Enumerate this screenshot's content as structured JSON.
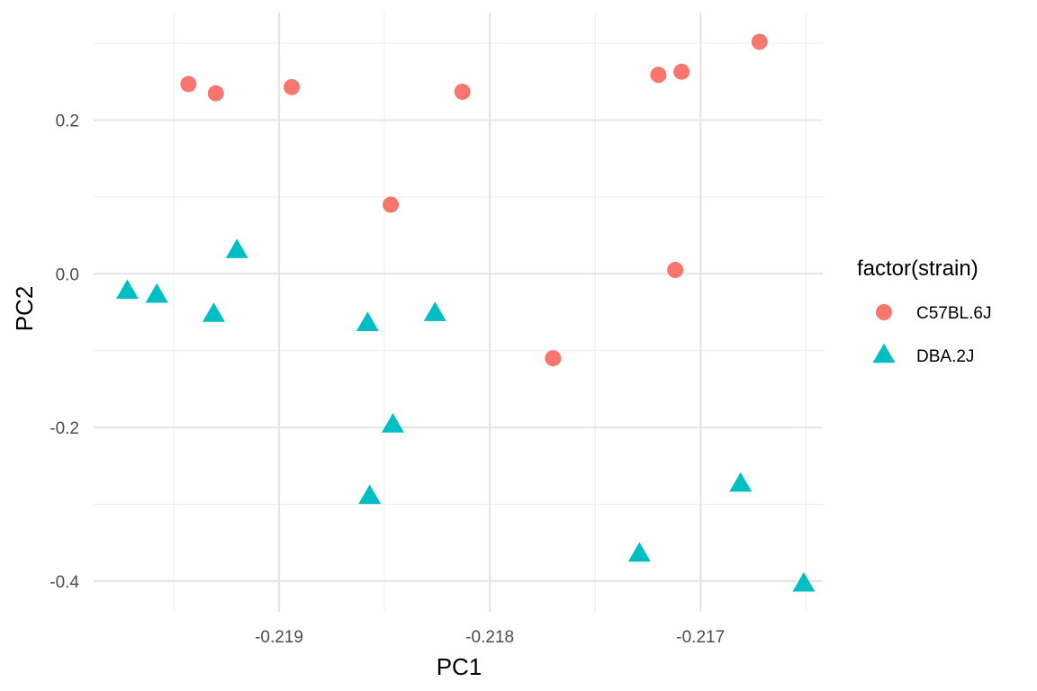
{
  "chart_data": {
    "type": "scatter",
    "xlabel": "PC1",
    "ylabel": "PC2",
    "xlim": [
      -219.88,
      -216.42
    ],
    "ylim": [
      -0.44,
      0.34
    ],
    "x_ticks": [
      -219,
      -218,
      -217
    ],
    "x_tick_labels": [
      "-0.219",
      "-0.218",
      "-0.217"
    ],
    "x_minor": [
      -219.5,
      -218.5,
      -217.5,
      -216.5
    ],
    "y_ticks": [
      -0.4,
      -0.2,
      0.0,
      0.2
    ],
    "y_tick_labels": [
      "-0.4",
      "-0.2",
      "0.0",
      "0.2"
    ],
    "y_minor": [
      -0.3,
      -0.1,
      0.1,
      0.3
    ],
    "grid": true,
    "legend": {
      "title": "factor(strain)",
      "position": "right"
    },
    "series": [
      {
        "name": "C57BL.6J",
        "shape": "circle",
        "color": "#F8766D",
        "points": [
          {
            "x": -219.43,
            "y": 0.247
          },
          {
            "x": -219.3,
            "y": 0.235
          },
          {
            "x": -218.94,
            "y": 0.243
          },
          {
            "x": -218.13,
            "y": 0.237
          },
          {
            "x": -217.2,
            "y": 0.259
          },
          {
            "x": -217.09,
            "y": 0.263
          },
          {
            "x": -216.72,
            "y": 0.302
          },
          {
            "x": -218.47,
            "y": 0.09
          },
          {
            "x": -217.12,
            "y": 0.005
          },
          {
            "x": -217.7,
            "y": -0.11
          }
        ]
      },
      {
        "name": "DBA.2J",
        "shape": "triangle",
        "color": "#00BFC4",
        "points": [
          {
            "x": -219.72,
            "y": -0.023
          },
          {
            "x": -219.58,
            "y": -0.028
          },
          {
            "x": -219.31,
            "y": -0.053
          },
          {
            "x": -219.2,
            "y": 0.03
          },
          {
            "x": -218.58,
            "y": -0.065
          },
          {
            "x": -218.26,
            "y": -0.052
          },
          {
            "x": -218.46,
            "y": -0.197
          },
          {
            "x": -218.57,
            "y": -0.29
          },
          {
            "x": -217.29,
            "y": -0.365
          },
          {
            "x": -216.81,
            "y": -0.274
          },
          {
            "x": -216.51,
            "y": -0.404
          }
        ]
      }
    ]
  }
}
